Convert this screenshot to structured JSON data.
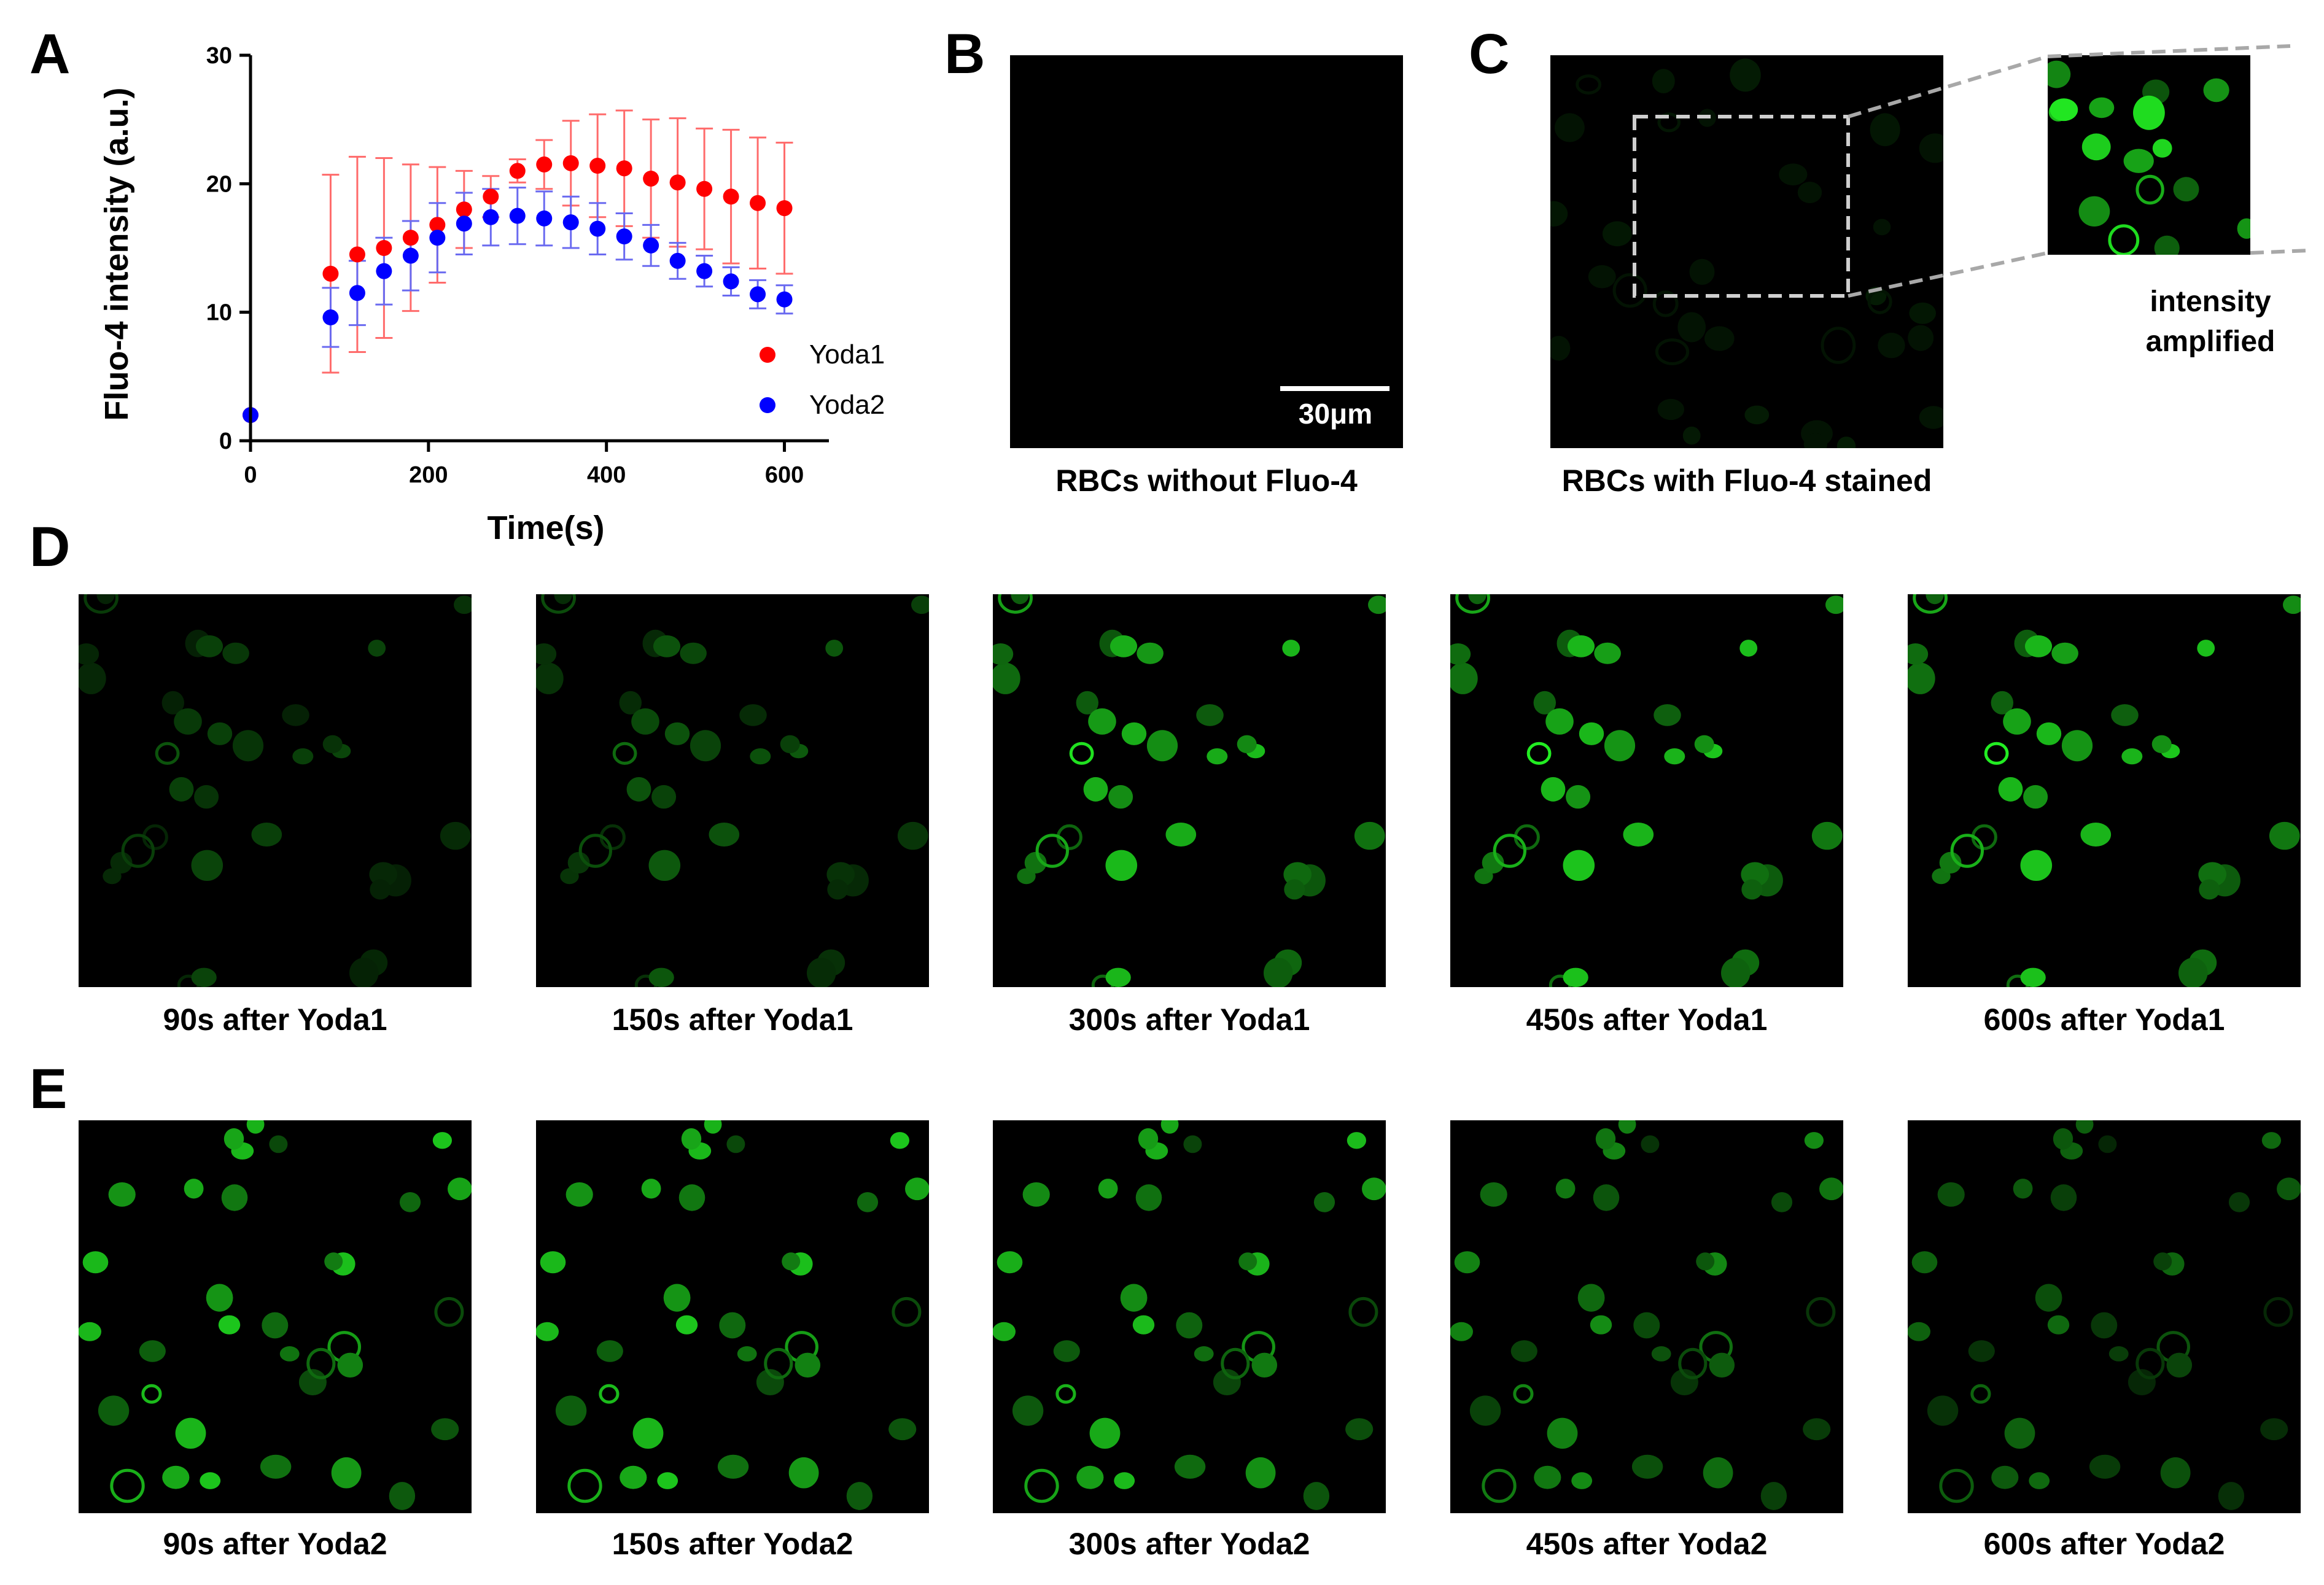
{
  "panels": {
    "a": {
      "letter": "A"
    },
    "b": {
      "letter": "B",
      "caption": "RBCs without Fluo-4",
      "scale_bar_label": "30μm"
    },
    "c": {
      "letter": "C",
      "caption": "RBCs with Fluo-4 stained",
      "inset_caption_line1": "intensity",
      "inset_caption_line2": "amplified"
    },
    "d": {
      "letter": "D",
      "captions": [
        "90s after Yoda1",
        "150s after Yoda1",
        "300s after Yoda1",
        "450s after Yoda1",
        "600s after Yoda1"
      ],
      "brightness": [
        0.35,
        0.45,
        0.95,
        1.0,
        1.0
      ]
    },
    "e": {
      "letter": "E",
      "captions": [
        "90s after Yoda2",
        "150s after Yoda2",
        "300s after Yoda2",
        "450s after Yoda2",
        "600s after Yoda2"
      ],
      "brightness": [
        0.85,
        0.85,
        0.8,
        0.6,
        0.45
      ]
    }
  },
  "colors": {
    "yoda1": "#ff0000",
    "yoda2": "#0000ff",
    "yoda1_err": "#ff6b6b",
    "yoda2_err": "#6a6af0",
    "fluor": "#22ee22"
  },
  "chart_data": {
    "type": "scatter",
    "xlabel": "Time(s)",
    "ylabel": "Fluo-4 intensity (a.u.)",
    "xlim": [
      0,
      650
    ],
    "ylim": [
      0,
      30
    ],
    "xticks": [
      0,
      200,
      400,
      600
    ],
    "yticks": [
      0,
      10,
      20,
      30
    ],
    "legend_position": "bottom-right",
    "series": [
      {
        "name": "Yoda1",
        "x": [
          0,
          90,
          120,
          150,
          180,
          210,
          240,
          270,
          300,
          330,
          360,
          390,
          420,
          450,
          480,
          510,
          540,
          570,
          600
        ],
        "y": [
          2,
          13,
          14.5,
          15,
          15.8,
          16.8,
          18,
          19,
          21,
          21.5,
          21.6,
          21.4,
          21.2,
          20.4,
          20.1,
          19.6,
          19,
          18.5,
          18.1
        ],
        "err": [
          0,
          7.7,
          7.6,
          7,
          5.7,
          4.5,
          3,
          1.6,
          0.9,
          1.9,
          3.3,
          4,
          4.5,
          4.6,
          5,
          4.7,
          5.2,
          5.1,
          5.1
        ]
      },
      {
        "name": "Yoda2",
        "x": [
          0,
          90,
          120,
          150,
          180,
          210,
          240,
          270,
          300,
          330,
          360,
          390,
          420,
          450,
          480,
          510,
          540,
          570,
          600
        ],
        "y": [
          2,
          9.6,
          11.5,
          13.2,
          14.4,
          15.8,
          16.9,
          17.4,
          17.5,
          17.3,
          17,
          16.5,
          15.9,
          15.2,
          14,
          13.2,
          12.4,
          11.4,
          11
        ],
        "err": [
          0,
          2.3,
          2.5,
          2.6,
          2.7,
          2.7,
          2.4,
          2.2,
          2.2,
          2.1,
          2,
          2,
          1.8,
          1.6,
          1.4,
          1.2,
          1.1,
          1.1,
          1.1
        ]
      }
    ]
  }
}
